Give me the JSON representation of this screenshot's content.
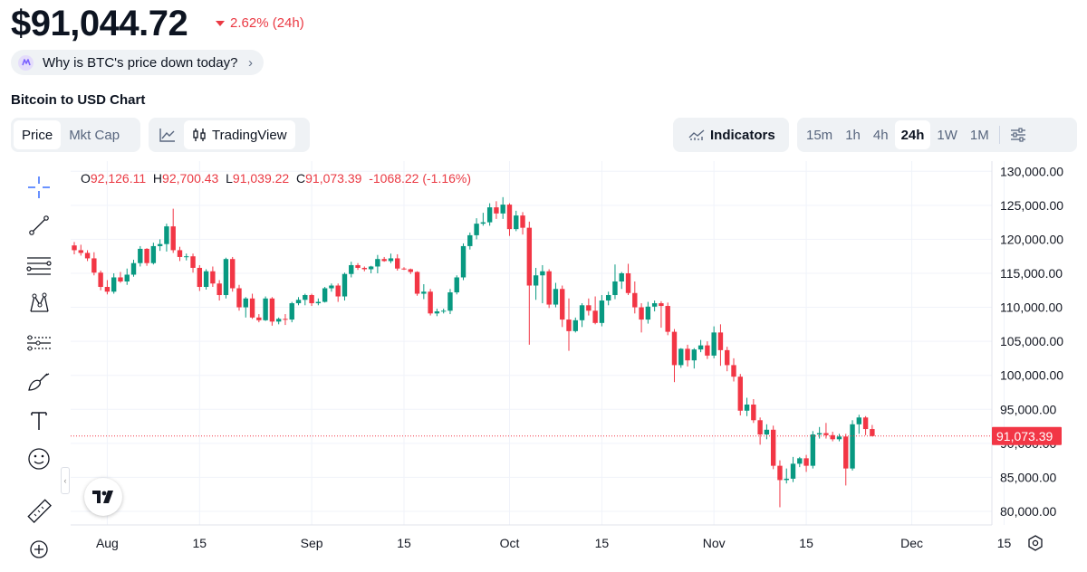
{
  "header": {
    "price": "$91,044.72",
    "change": "2.62% (24h)",
    "change_direction": "down",
    "why_pill": "Why is BTC's price down today?",
    "chart_title": "Bitcoin to USD Chart"
  },
  "controls": {
    "type_tabs": [
      "Price",
      "Mkt Cap"
    ],
    "type_active": "Price",
    "view_tabs": [
      "line-chart-icon",
      "TradingView"
    ],
    "view_active": "TradingView",
    "indicators_label": "Indicators",
    "timeframes": [
      "15m",
      "1h",
      "4h",
      "24h",
      "1W",
      "1M"
    ],
    "timeframe_active": "24h"
  },
  "ohlc": {
    "o_label": "O",
    "o": "92,126.11",
    "h_label": "H",
    "h": "92,700.43",
    "l_label": "L",
    "l": "91,039.22",
    "c_label": "C",
    "c": "91,073.39",
    "diff": "-1068.22 (-1.16%)"
  },
  "last_price_label": "91,073.39",
  "toolbar_icons": [
    "crosshair-icon",
    "trend-line-icon",
    "fib-lines-icon",
    "pattern-icon",
    "prediction-icon",
    "brush-icon",
    "text-icon",
    "emoji-icon",
    "ruler-icon",
    "zoom-in-icon"
  ],
  "colors": {
    "up": "#089981",
    "down": "#f23645",
    "accent_down": "#ea3943",
    "grid": "#f0f3fa"
  },
  "chart_data": {
    "type": "candlestick",
    "y_ticks": [
      80000,
      85000,
      90000,
      95000,
      100000,
      105000,
      110000,
      115000,
      120000,
      125000,
      130000
    ],
    "y_tick_labels": [
      "80,000.00",
      "85,000.00",
      "90,000.00",
      "95,000.00",
      "100,000.00",
      "105,000.00",
      "110,000.00",
      "115,000.00",
      "120,000.00",
      "125,000.00",
      "130,000.00"
    ],
    "ylim": [
      78000,
      131500
    ],
    "x_ticks": [
      {
        "label": "Aug",
        "date": "2025-08-01"
      },
      {
        "label": "15",
        "date": "2025-08-15"
      },
      {
        "label": "Sep",
        "date": "2025-09-01"
      },
      {
        "label": "15",
        "date": "2025-09-15"
      },
      {
        "label": "Oct",
        "date": "2025-10-01"
      },
      {
        "label": "15",
        "date": "2025-10-15"
      },
      {
        "label": "Nov",
        "date": "2025-11-01"
      },
      {
        "label": "15",
        "date": "2025-11-15"
      },
      {
        "label": "Dec",
        "date": "2025-12-01"
      },
      {
        "label": "15",
        "date": "2025-12-15"
      }
    ],
    "start_date": "2025-07-27",
    "grid": true,
    "candles": [
      [
        119100,
        119600,
        117800,
        118400
      ],
      [
        118400,
        119200,
        117600,
        118000
      ],
      [
        118000,
        118400,
        116800,
        117200
      ],
      [
        117200,
        118100,
        114700,
        115100
      ],
      [
        115100,
        115400,
        112500,
        113000
      ],
      [
        113000,
        114000,
        111900,
        112300
      ],
      [
        112300,
        115000,
        112000,
        114400
      ],
      [
        114400,
        115200,
        113600,
        113800
      ],
      [
        113800,
        115700,
        113300,
        114800
      ],
      [
        114800,
        117000,
        114500,
        116500
      ],
      [
        116500,
        119000,
        116000,
        118600
      ],
      [
        118600,
        118700,
        116100,
        116500
      ],
      [
        116500,
        119500,
        116300,
        119000
      ],
      [
        119000,
        120000,
        118300,
        119300
      ],
      [
        119300,
        122300,
        118200,
        121900
      ],
      [
        121900,
        124500,
        118000,
        118400
      ],
      [
        118400,
        118900,
        116800,
        117400
      ],
      [
        117400,
        117900,
        116900,
        117500
      ],
      [
        117500,
        117900,
        115100,
        115800
      ],
      [
        115800,
        116200,
        112400,
        113000
      ],
      [
        113000,
        115600,
        112600,
        115300
      ],
      [
        115300,
        116000,
        113000,
        113500
      ],
      [
        113500,
        114000,
        111000,
        111800
      ],
      [
        111800,
        117300,
        111300,
        117100
      ],
      [
        117100,
        117400,
        112300,
        112800
      ],
      [
        112800,
        113300,
        109500,
        110000
      ],
      [
        110000,
        111500,
        108500,
        111300
      ],
      [
        111300,
        112000,
        108300,
        108500
      ],
      [
        108500,
        109000,
        107800,
        108100
      ],
      [
        108100,
        111600,
        108000,
        111300
      ],
      [
        111300,
        111500,
        107300,
        107900
      ],
      [
        107900,
        108500,
        107500,
        108300
      ],
      [
        108300,
        109000,
        107400,
        108200
      ],
      [
        108200,
        110800,
        107800,
        110600
      ],
      [
        110600,
        111500,
        110300,
        111100
      ],
      [
        111100,
        112000,
        110300,
        111800
      ],
      [
        111800,
        112000,
        110200,
        110600
      ],
      [
        110600,
        111300,
        110300,
        110800
      ],
      [
        110800,
        113000,
        110700,
        112800
      ],
      [
        112800,
        113500,
        112300,
        113200
      ],
      [
        113200,
        113500,
        110800,
        111600
      ],
      [
        111600,
        115100,
        111000,
        114900
      ],
      [
        114900,
        116700,
        114400,
        116200
      ],
      [
        116200,
        116500,
        115500,
        115800
      ],
      [
        115800,
        116000,
        115300,
        115600
      ],
      [
        115600,
        116100,
        115000,
        116000
      ],
      [
        116000,
        117700,
        115000,
        117100
      ],
      [
        117100,
        117400,
        116700,
        116800
      ],
      [
        116800,
        117900,
        116500,
        117200
      ],
      [
        117200,
        117800,
        115400,
        115700
      ],
      [
        115700,
        115900,
        115500,
        115600
      ],
      [
        115600,
        115700,
        114900,
        115200
      ],
      [
        115200,
        115300,
        111700,
        112000
      ],
      [
        112000,
        113400,
        111200,
        112300
      ],
      [
        112300,
        112700,
        108800,
        109100
      ],
      [
        109100,
        109800,
        108700,
        109400
      ],
      [
        109400,
        109800,
        109100,
        109500
      ],
      [
        109500,
        112700,
        109000,
        112200
      ],
      [
        112200,
        114700,
        111900,
        114400
      ],
      [
        114400,
        119400,
        114000,
        119000
      ],
      [
        119000,
        121000,
        118500,
        120600
      ],
      [
        120600,
        123100,
        120000,
        122300
      ],
      [
        122300,
        123900,
        122000,
        122500
      ],
      [
        122500,
        125300,
        122000,
        124700
      ],
      [
        124700,
        125600,
        123000,
        123800
      ],
      [
        123800,
        126200,
        123000,
        125100
      ],
      [
        125100,
        125300,
        120500,
        121500
      ],
      [
        121500,
        124200,
        121200,
        123500
      ],
      [
        123500,
        124000,
        120700,
        121700
      ],
      [
        121700,
        122600,
        104500,
        113200
      ],
      [
        113200,
        115800,
        111100,
        114700
      ],
      [
        114700,
        116200,
        110600,
        115300
      ],
      [
        115300,
        115600,
        109900,
        110400
      ],
      [
        110400,
        113600,
        110000,
        112700
      ],
      [
        112700,
        113200,
        107100,
        108200
      ],
      [
        108200,
        111300,
        103600,
        106500
      ],
      [
        106500,
        108500,
        106300,
        108100
      ],
      [
        108100,
        110600,
        107100,
        110300
      ],
      [
        110300,
        111300,
        108800,
        109500
      ],
      [
        109500,
        111600,
        107500,
        107700
      ],
      [
        107700,
        111800,
        107200,
        111000
      ],
      [
        111000,
        112300,
        110300,
        111800
      ],
      [
        111800,
        116300,
        111200,
        113800
      ],
      [
        113800,
        115200,
        112700,
        115000
      ],
      [
        115000,
        116400,
        111800,
        112100
      ],
      [
        112100,
        113800,
        109100,
        110000
      ],
      [
        110000,
        110600,
        106300,
        108200
      ],
      [
        108200,
        110800,
        107600,
        110100
      ],
      [
        110100,
        111000,
        109400,
        110600
      ],
      [
        110600,
        110900,
        107000,
        110200
      ],
      [
        110200,
        110700,
        105900,
        106400
      ],
      [
        106400,
        106800,
        99000,
        101500
      ],
      [
        101500,
        104000,
        101100,
        103900
      ],
      [
        103900,
        104500,
        101300,
        102200
      ],
      [
        102200,
        104000,
        101000,
        103800
      ],
      [
        103800,
        105200,
        103400,
        104400
      ],
      [
        104400,
        105000,
        102400,
        102900
      ],
      [
        102900,
        107200,
        102500,
        106300
      ],
      [
        106300,
        107500,
        101400,
        103700
      ],
      [
        103700,
        104200,
        100600,
        101500
      ],
      [
        101500,
        102500,
        99100,
        99800
      ],
      [
        99800,
        100200,
        94100,
        94800
      ],
      [
        94800,
        96700,
        94000,
        95700
      ],
      [
        95700,
        96500,
        93000,
        93400
      ],
      [
        93400,
        93800,
        89800,
        91300
      ],
      [
        91300,
        92800,
        90600,
        92000
      ],
      [
        92000,
        92600,
        86200,
        86700
      ],
      [
        86700,
        87500,
        80600,
        84600
      ],
      [
        84600,
        86300,
        84100,
        84800
      ],
      [
        84800,
        88000,
        84300,
        87000
      ],
      [
        87000,
        88000,
        86500,
        87800
      ],
      [
        87800,
        88300,
        85800,
        86700
      ],
      [
        86700,
        91800,
        86300,
        91300
      ],
      [
        91300,
        92400,
        90700,
        91500
      ],
      [
        91500,
        93000,
        90700,
        91200
      ],
      [
        91200,
        91700,
        90300,
        90600
      ],
      [
        90600,
        91400,
        90300,
        91000
      ],
      [
        91000,
        91400,
        83800,
        86300
      ],
      [
        86300,
        93400,
        86000,
        92800
      ],
      [
        92800,
        94200,
        91400,
        93800
      ],
      [
        93800,
        94000,
        91200,
        92100
      ],
      [
        92100,
        92700,
        91000,
        91073
      ]
    ]
  }
}
